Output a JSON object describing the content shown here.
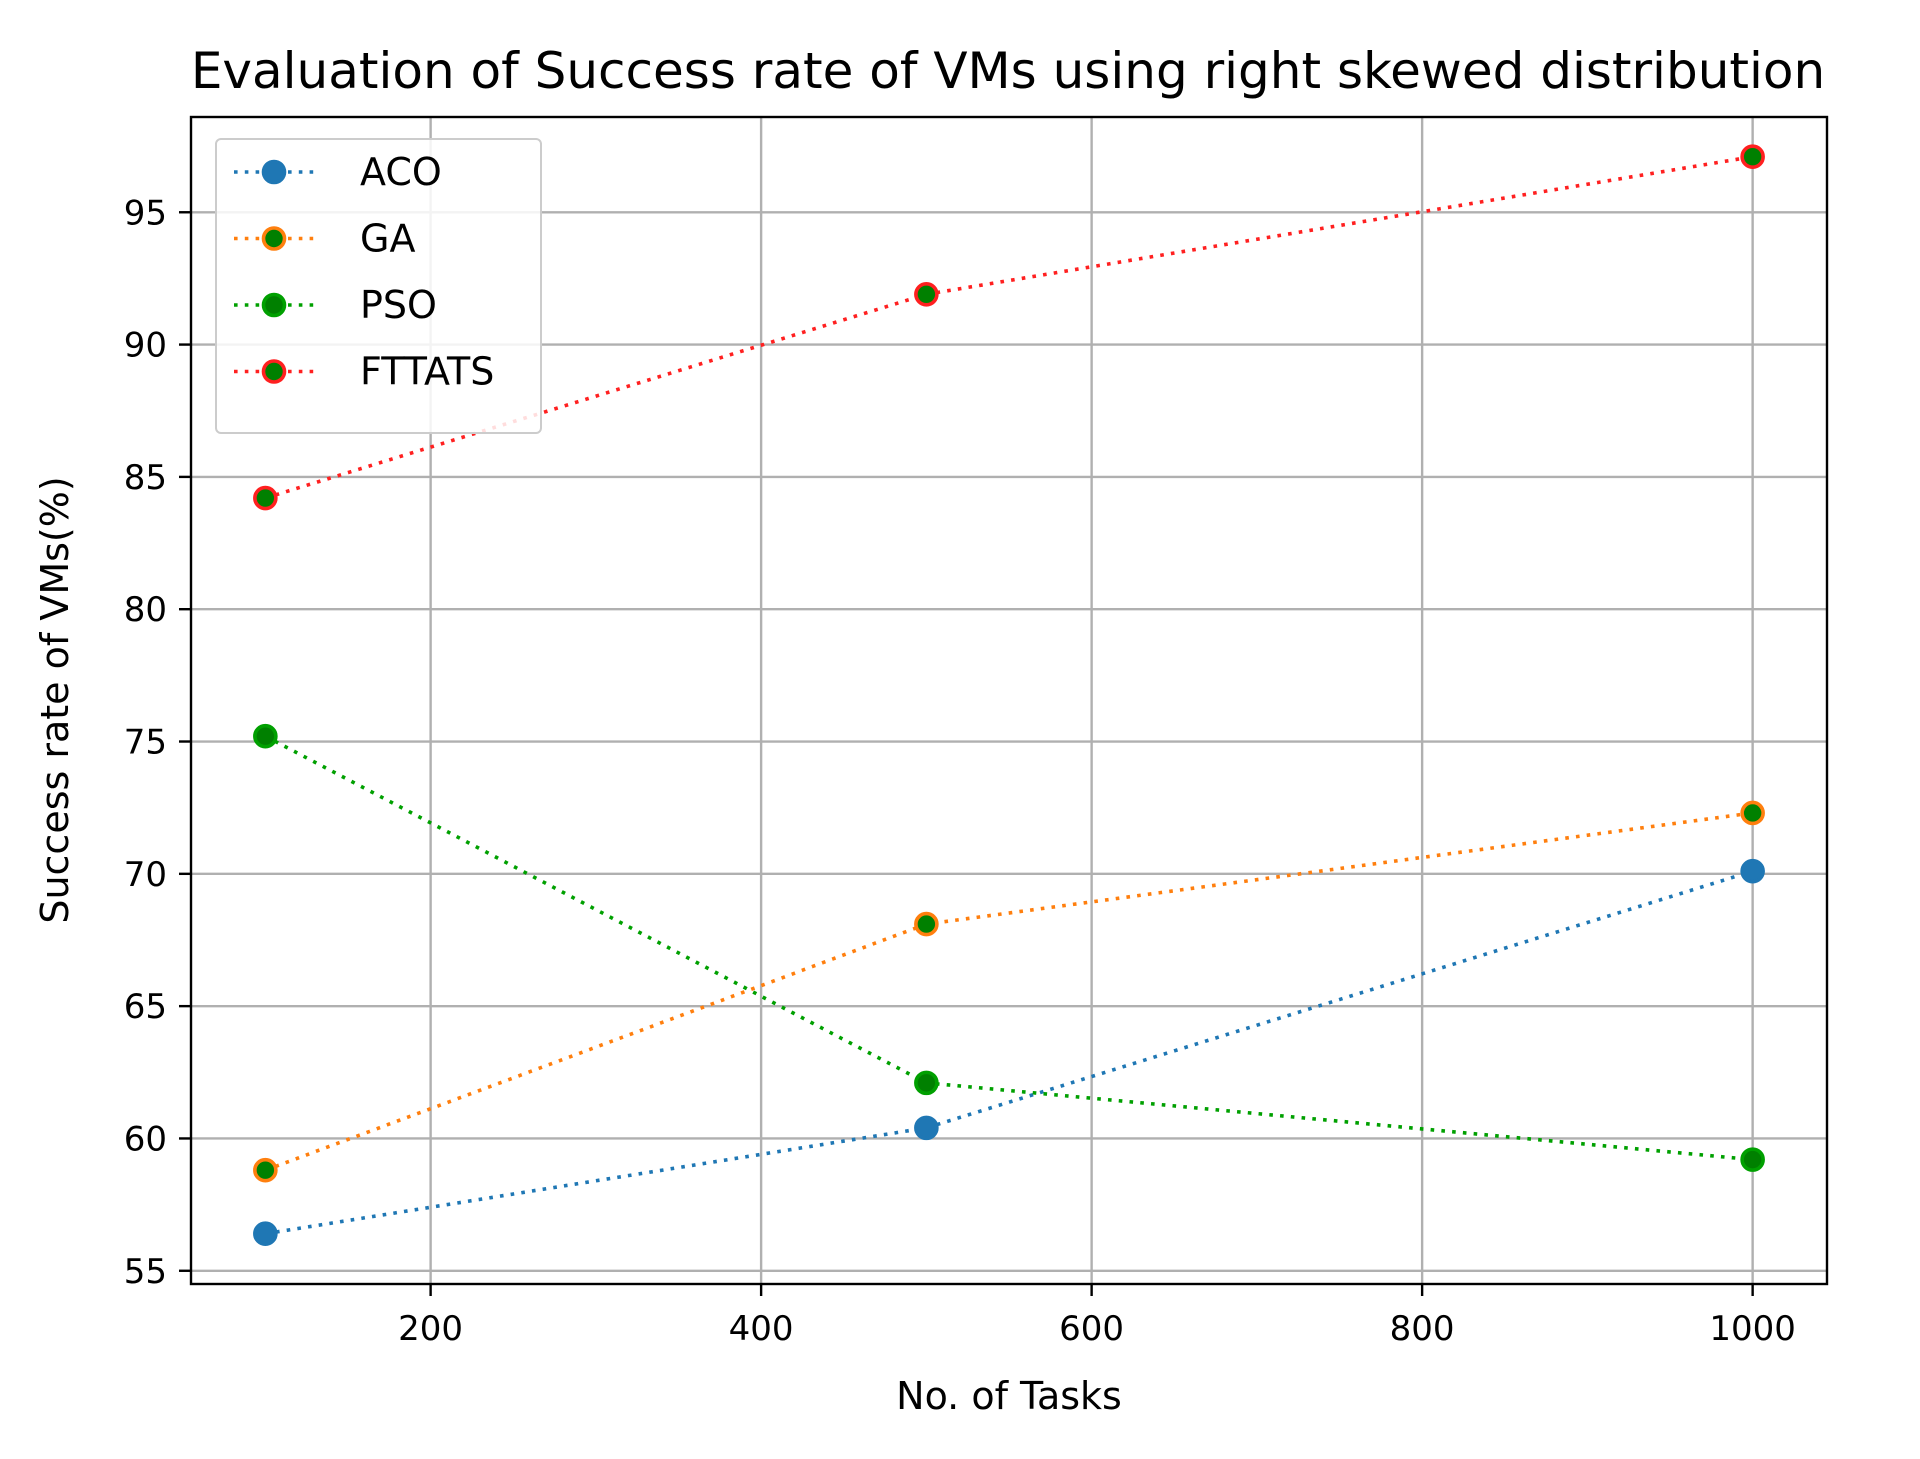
{
  "chart_data": {
    "type": "line",
    "title": "Evaluation of Success rate of VMs using right skewed distribution",
    "xlabel": "No. of Tasks",
    "ylabel": "Success rate of VMs(%)",
    "x": [
      100,
      500,
      1000
    ],
    "xlim": [
      55,
      1045
    ],
    "ylim": [
      54.5,
      98.6
    ],
    "xticks": [
      200,
      400,
      600,
      800,
      1000
    ],
    "yticks": [
      55,
      60,
      65,
      70,
      75,
      80,
      85,
      90,
      95
    ],
    "grid": true,
    "legend": "top-left",
    "series": [
      {
        "name": "ACO",
        "values": [
          56.4,
          60.4,
          70.1
        ],
        "color": "#1f77b4",
        "marker_face": "#1f77b4"
      },
      {
        "name": "GA",
        "values": [
          58.8,
          68.1,
          72.3
        ],
        "color": "#ff7f0e",
        "marker_face": "#008000"
      },
      {
        "name": "PSO",
        "values": [
          75.2,
          62.1,
          59.2
        ],
        "color": "#00a000",
        "marker_face": "#008000"
      },
      {
        "name": "FTTATS",
        "values": [
          84.2,
          91.9,
          97.1
        ],
        "color": "#ff2020",
        "marker_face": "#008000"
      }
    ]
  }
}
